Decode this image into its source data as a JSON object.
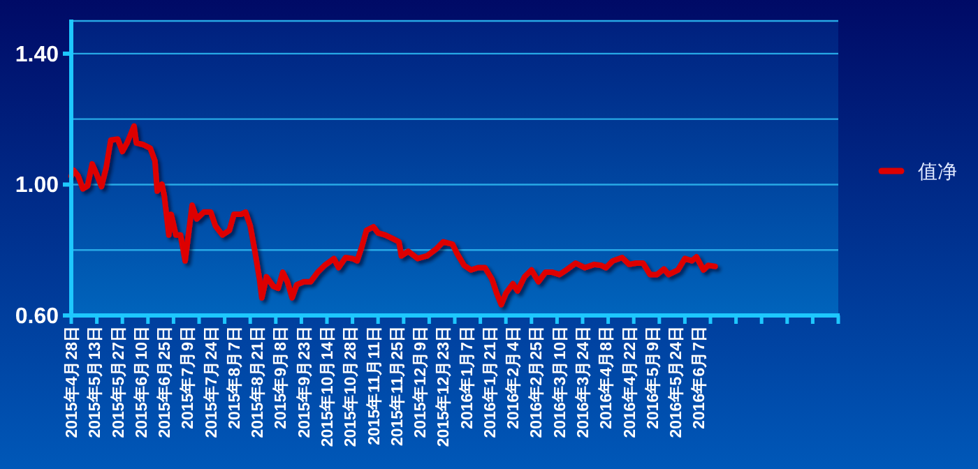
{
  "chart_data": {
    "type": "line",
    "categories": [
      "2015年4月28日",
      null,
      null,
      null,
      null,
      null,
      null,
      null,
      null,
      null,
      "2015年5月13日",
      null,
      null,
      null,
      null,
      null,
      null,
      null,
      null,
      null,
      "2015年5月27日",
      null,
      null,
      null,
      null,
      null,
      null,
      null,
      null,
      null,
      "2015年6月10日",
      null,
      null,
      null,
      null,
      null,
      null,
      null,
      null,
      null,
      "2015年6月25日",
      null,
      null,
      null,
      null,
      null,
      null,
      null,
      null,
      null,
      "2015年7月9日",
      null,
      null,
      null,
      null,
      null,
      null,
      null,
      null,
      null,
      "2015年7月24日",
      null,
      null,
      null,
      null,
      null,
      null,
      null,
      null,
      null,
      "2015年8月7日",
      null,
      null,
      null,
      null,
      null,
      null,
      null,
      null,
      null,
      "2015年8月21日",
      null,
      null,
      null,
      null,
      null,
      null,
      null,
      null,
      null,
      "2015年9月8日",
      null,
      null,
      null,
      null,
      null,
      null,
      null,
      null,
      null,
      "2015年9月23日",
      null,
      null,
      null,
      null,
      null,
      null,
      null,
      null,
      null,
      "2015年10月14日",
      null,
      null,
      null,
      null,
      null,
      null,
      null,
      null,
      null,
      "2015年10月28日",
      null,
      null,
      null,
      null,
      null,
      null,
      null,
      null,
      null,
      "2015年11月11日",
      null,
      null,
      null,
      null,
      null,
      null,
      null,
      null,
      null,
      "2015年11月25日",
      null,
      null,
      null,
      null,
      null,
      null,
      null,
      null,
      null,
      "2015年12月9日",
      null,
      null,
      null,
      null,
      null,
      null,
      null,
      null,
      null,
      "2015年12月23日",
      null,
      null,
      null,
      null,
      null,
      null,
      null,
      null,
      null,
      "2016年1月7日",
      null,
      null,
      null,
      null,
      null,
      null,
      null,
      null,
      null,
      "2016年1月21日",
      null,
      null,
      null,
      null,
      null,
      null,
      null,
      null,
      null,
      "2016年2月4日",
      null,
      null,
      null,
      null,
      null,
      null,
      null,
      null,
      null,
      "2016年2月25日",
      null,
      null,
      null,
      null,
      null,
      null,
      null,
      null,
      null,
      "2016年3月10日",
      null,
      null,
      null,
      null,
      null,
      null,
      null,
      null,
      null,
      "2016年3月24日",
      null,
      null,
      null,
      null,
      null,
      null,
      null,
      null,
      null,
      "2016年4月8日",
      null,
      null,
      null,
      null,
      null,
      null,
      null,
      null,
      null,
      "2016年4月22日",
      null,
      null,
      null,
      null,
      null,
      null,
      null,
      null,
      null,
      "2016年5月9日",
      null,
      null,
      null,
      null,
      null,
      null,
      null,
      null,
      null,
      "2016年5月24日",
      null,
      null,
      null,
      null,
      null,
      null,
      null,
      null,
      null,
      "2016年6月7日",
      null,
      null,
      null,
      null,
      null,
      null,
      null,
      null,
      null,
      null,
      null,
      null,
      null,
      null,
      null,
      null,
      null,
      null,
      null,
      null,
      null,
      null,
      null,
      null,
      null,
      null,
      null,
      null,
      null,
      null,
      null,
      null,
      null,
      null,
      null,
      null,
      null,
      null,
      null,
      null,
      null,
      null,
      null,
      null,
      null,
      null,
      null,
      null,
      null,
      null,
      null,
      null,
      null,
      null,
      null,
      null,
      null,
      null,
      null,
      null
    ],
    "series": [
      {
        "name": "值净",
        "color": "#dd0000",
        "values": [
          1.026,
          1.044,
          null,
          1.026,
          null,
          0.987,
          null,
          0.996,
          null,
          1.063,
          null,
          1.03,
          null,
          0.994,
          null,
          1.051,
          null,
          1.136,
          null,
          null,
          1.139,
          null,
          1.101,
          null,
          1.127,
          null,
          null,
          1.179,
          1.127,
          null,
          null,
          1.122,
          null,
          null,
          1.111,
          null,
          1.072,
          0.98,
          null,
          1.001,
          0.966,
          null,
          0.846,
          0.909,
          null,
          0.846,
          null,
          0.846,
          null,
          0.767,
          null,
          null,
          0.937,
          null,
          0.895,
          null,
          null,
          0.916,
          null,
          null,
          0.916,
          null,
          0.874,
          null,
          null,
          0.846,
          null,
          null,
          0.86,
          null,
          0.909,
          null,
          null,
          0.909,
          null,
          0.916,
          null,
          0.874,
          null,
          0.796,
          null,
          0.711,
          0.654,
          null,
          0.718,
          null,
          null,
          0.689,
          null,
          0.683,
          null,
          0.732,
          null,
          0.703,
          null,
          0.654,
          null,
          0.694,
          null,
          null,
          0.703,
          null,
          null,
          0.703,
          null,
          null,
          0.732,
          null,
          null,
          0.753,
          null,
          null,
          null,
          0.774,
          null,
          0.746,
          null,
          null,
          0.777,
          null,
          null,
          0.774,
          null,
          0.767,
          null,
          0.81,
          null,
          0.86,
          null,
          null,
          0.871,
          null,
          0.852,
          null,
          null,
          0.846,
          null,
          null,
          0.836,
          null,
          null,
          0.825,
          0.782,
          null,
          null,
          0.796,
          null,
          null,
          null,
          0.774,
          null,
          null,
          null,
          0.782,
          null,
          null,
          null,
          0.803,
          null,
          null,
          0.825,
          null,
          null,
          null,
          0.818,
          null,
          0.789,
          null,
          null,
          0.753,
          null,
          null,
          0.739,
          null,
          null,
          0.746,
          null,
          null,
          0.746,
          null,
          null,
          0.711,
          null,
          0.668,
          null,
          0.633,
          null,
          0.668,
          null,
          null,
          0.697,
          null,
          0.675,
          null,
          null,
          0.718,
          null,
          null,
          0.739,
          null,
          null,
          0.703,
          null,
          null,
          0.732,
          null,
          null,
          0.732,
          null,
          null,
          0.725,
          null,
          null,
          0.739,
          null,
          null,
          null,
          0.76,
          null,
          null,
          null,
          0.746,
          null,
          null,
          null,
          0.756,
          null,
          null,
          0.753,
          null,
          0.746,
          null,
          null,
          0.767,
          null,
          null,
          null,
          0.777,
          null,
          null,
          0.756,
          null,
          null,
          0.76,
          null,
          null,
          0.76,
          null,
          null,
          0.725,
          null,
          null,
          0.725,
          null,
          null,
          0.742,
          null,
          0.725,
          null,
          null,
          null,
          0.739,
          null,
          null,
          0.774,
          null,
          null,
          0.767,
          null,
          0.779,
          null,
          null,
          0.739,
          null,
          0.753,
          null,
          null,
          0.75,
          null,
          null,
          null,
          null,
          null,
          null,
          null,
          null,
          null,
          null,
          null,
          null,
          null,
          null,
          null,
          null,
          null,
          null,
          null,
          null,
          null,
          null,
          null,
          null,
          null,
          null,
          null,
          null,
          null,
          null,
          null,
          null,
          null,
          null,
          null,
          null,
          null,
          null,
          null,
          null,
          null,
          null,
          null,
          null,
          null,
          null,
          null,
          null,
          null,
          null,
          null,
          null,
          null
        ]
      }
    ],
    "ylim": [
      0.6,
      1.5
    ],
    "yticks": [
      {
        "value": 0.6,
        "label": "0.60"
      },
      {
        "value": 0.8,
        "label": null
      },
      {
        "value": 1.0,
        "label": "1.00"
      },
      {
        "value": 1.2,
        "label": null
      },
      {
        "value": 1.4,
        "label": "1.40"
      }
    ],
    "grid": "y",
    "legend": "right",
    "marker": "none",
    "line_style": "solid"
  }
}
